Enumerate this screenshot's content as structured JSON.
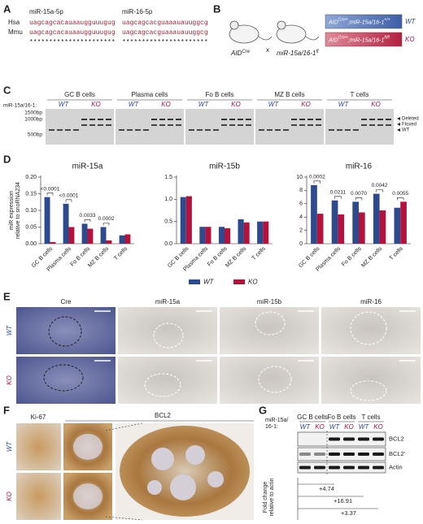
{
  "panel_a": {
    "label": "A",
    "rows": [
      "Hsa",
      "Mmu"
    ],
    "sequences": [
      {
        "name": "miR-15a-5p",
        "hsa": "uagcagcacauaaugguuugug",
        "mmu": "uagcagcacauaaugguuugug",
        "conservation": "**********************"
      },
      {
        "name": "miR-16-5p",
        "hsa": "uagcagcacguaaauauuggcg",
        "mmu": "uagcagcacguaaauauuggcg",
        "conservation": "**********************"
      }
    ]
  },
  "panel_b": {
    "label": "B",
    "mouse1": [
      "AID",
      "Cre"
    ],
    "cross": "x",
    "mouse2": [
      "miR-15a/16-1",
      "fl"
    ],
    "genotypes": [
      {
        "parts": [
          "AID",
          "Cre/+",
          ";miR-15a/16-1",
          "+/+"
        ],
        "tag": "WT"
      },
      {
        "parts": [
          "AID",
          "Cre/+",
          ";miR-15a/16-1",
          "fl/fl"
        ],
        "tag": "KO"
      }
    ]
  },
  "panel_c": {
    "label": "C",
    "row_label": "miR-15a/16-1:",
    "groups": [
      "GC B cells",
      "Plasma cells",
      "Fo B cells",
      "MZ B cells",
      "T cells"
    ],
    "genotypes": [
      "WT",
      "KO"
    ],
    "ladder": [
      "1500bp",
      "1000bp",
      "500bp"
    ],
    "bands": [
      "Deleted",
      "Floxed",
      "WT"
    ]
  },
  "panel_d": {
    "label": "D"
  },
  "panel_e": {
    "label": "E",
    "columns": [
      "Cre",
      "miR-15a",
      "miR-15b",
      "miR-16"
    ],
    "rows": [
      "WT",
      "KO"
    ]
  },
  "panel_f": {
    "label": "F",
    "columns": [
      "Ki-67",
      "BCL2"
    ],
    "rows": [
      "WT",
      "KO"
    ]
  },
  "panel_g": {
    "label": "G",
    "row_label": [
      "miR-15a/",
      "16-1:"
    ],
    "groups": [
      "GC B cells",
      "Fo B cells",
      "T cells"
    ],
    "lanes": [
      "WT",
      "KO"
    ],
    "bands": [
      "BCL2",
      "BCL2'",
      "Actin"
    ],
    "y_label": [
      "Fold change",
      "relative to actin"
    ],
    "fold_changes": [
      "+4.74",
      "+16.91",
      "+3.37"
    ]
  },
  "chart_data": [
    {
      "type": "bar",
      "title": "miR-15a",
      "y_label": [
        "miR expression",
        "relative to snoRNA234"
      ],
      "categories": [
        "GC B cells",
        "Plasma cells",
        "Fo B cells",
        "MZ B cells",
        "T cells"
      ],
      "series": [
        {
          "name": "WT",
          "color": "#2c4a8c",
          "values": [
            0.14,
            0.12,
            0.06,
            0.05,
            0.025
          ]
        },
        {
          "name": "KO",
          "color": "#b3123c",
          "values": [
            0.005,
            0.05,
            0.045,
            0.01,
            0.028
          ]
        }
      ],
      "annotations": [
        "<0.0001",
        "<0.0001",
        "0.0033",
        "0.0002",
        null
      ],
      "ylim": [
        0,
        0.2
      ],
      "yticks": [
        {
          "value": 0,
          "label": "0.00"
        },
        {
          "value": 0.05,
          "label": "0.05"
        },
        {
          "value": 0.1,
          "label": "0.10"
        },
        {
          "value": 0.15,
          "label": "0.15"
        },
        {
          "value": 0.2,
          "label": "0.20"
        }
      ]
    },
    {
      "type": "bar",
      "title": "miR-15b",
      "categories": [
        "GC B cells",
        "Plasma cells",
        "Fo B cells",
        "MZ B cells",
        "T cells"
      ],
      "series": [
        {
          "name": "WT",
          "color": "#2c4a8c",
          "values": [
            1.05,
            0.38,
            0.38,
            0.55,
            0.5
          ]
        },
        {
          "name": "KO",
          "color": "#b3123c",
          "values": [
            1.07,
            0.38,
            0.35,
            0.48,
            0.5
          ]
        }
      ],
      "ylim": [
        0,
        1.5
      ],
      "yticks": [
        {
          "value": 0,
          "label": "0.0"
        },
        {
          "value": 0.5,
          "label": "0.5"
        },
        {
          "value": 1,
          "label": "1.0"
        },
        {
          "value": 1.5,
          "label": "1.5"
        }
      ]
    },
    {
      "type": "bar",
      "title": "miR-16",
      "categories": [
        "GC B cells",
        "Plasma cells",
        "Fo B cells",
        "MZ B cells",
        "T cells"
      ],
      "series": [
        {
          "name": "WT",
          "color": "#2c4a8c",
          "values": [
            8.8,
            6.5,
            6.3,
            7.5,
            5.4
          ]
        },
        {
          "name": "KO",
          "color": "#b3123c",
          "values": [
            4.5,
            4.4,
            4.7,
            5.0,
            6.3
          ]
        }
      ],
      "annotations": [
        "0.0002",
        "0.0211",
        "0.0070",
        "0.0042",
        "0.0055"
      ],
      "ylim": [
        0,
        10
      ],
      "yticks": [
        0,
        2,
        4,
        6,
        8,
        10
      ]
    }
  ]
}
